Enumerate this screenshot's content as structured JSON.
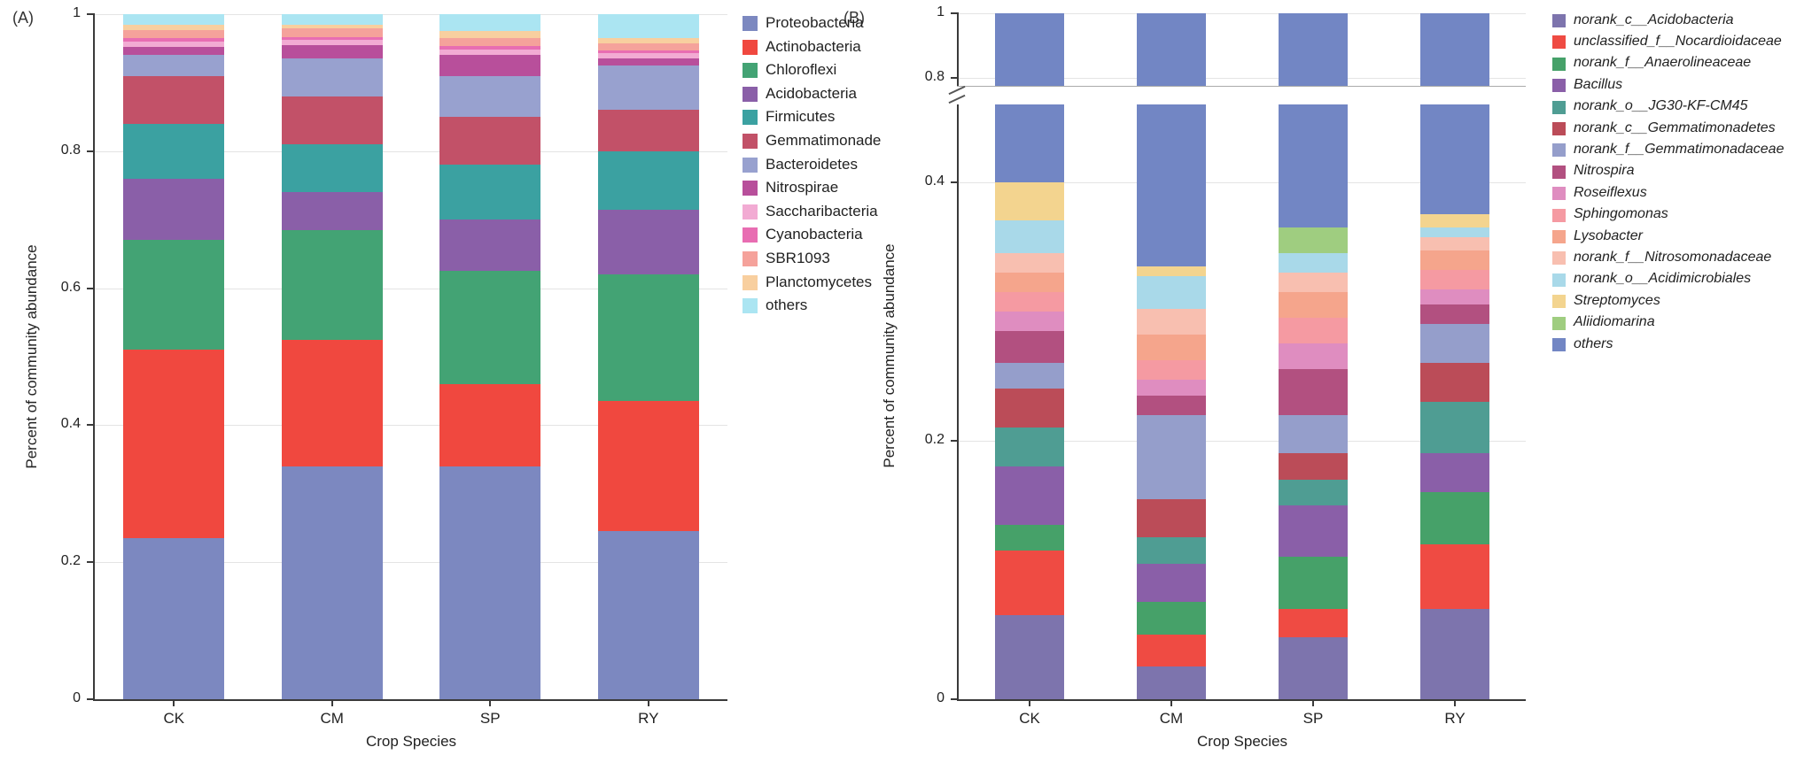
{
  "figure_title": "",
  "chart_data": [
    {
      "id": "A",
      "panel_label": "(A)",
      "type": "bar",
      "stacked": true,
      "title": "",
      "xlabel": "Crop Species",
      "ylabel": "Percent of community abundance",
      "categories": [
        "CK",
        "CM",
        "SP",
        "RY"
      ],
      "ylim": [
        0,
        1
      ],
      "yticks": [
        0,
        0.2,
        0.4,
        0.6,
        0.8,
        1
      ],
      "grid": true,
      "legend_position": "right",
      "legend_italic": false,
      "series": [
        {
          "name": "Proteobacteria",
          "color": "#7c88c0",
          "values": [
            0.235,
            0.34,
            0.34,
            0.245
          ]
        },
        {
          "name": "Actinobacteria",
          "color": "#f0483f",
          "values": [
            0.275,
            0.185,
            0.12,
            0.19
          ]
        },
        {
          "name": "Chloroflexi",
          "color": "#43a374",
          "values": [
            0.16,
            0.16,
            0.165,
            0.185
          ]
        },
        {
          "name": "Acidobacteria",
          "color": "#8a5fa8",
          "values": [
            0.09,
            0.055,
            0.075,
            0.095
          ]
        },
        {
          "name": "Firmicutes",
          "color": "#3ba1a1",
          "values": [
            0.08,
            0.07,
            0.08,
            0.085
          ]
        },
        {
          "name": "Gemmatimonade",
          "color": "#c25168",
          "values": [
            0.07,
            0.07,
            0.07,
            0.06
          ]
        },
        {
          "name": "Bacteroidetes",
          "color": "#98a1cf",
          "values": [
            0.03,
            0.055,
            0.06,
            0.065
          ]
        },
        {
          "name": "Nitrospirae",
          "color": "#b84f9b",
          "values": [
            0.012,
            0.02,
            0.03,
            0.01
          ]
        },
        {
          "name": "Saccharibacteria",
          "color": "#f2abd3",
          "values": [
            0.008,
            0.008,
            0.008,
            0.008
          ]
        },
        {
          "name": "Cyanobacteria",
          "color": "#e86db2",
          "values": [
            0.005,
            0.004,
            0.005,
            0.004
          ]
        },
        {
          "name": "SBR1093",
          "color": "#f5a29b",
          "values": [
            0.012,
            0.012,
            0.012,
            0.01
          ]
        },
        {
          "name": "Planctomycetes",
          "color": "#f8cf9f",
          "values": [
            0.008,
            0.006,
            0.01,
            0.008
          ]
        },
        {
          "name": "others",
          "color": "#abe5f2",
          "values": [
            0.015,
            0.015,
            0.025,
            0.035
          ]
        }
      ]
    },
    {
      "id": "B",
      "panel_label": "(B)",
      "type": "bar",
      "stacked": true,
      "title": "",
      "xlabel": "Crop Species",
      "ylabel": "Percent of community abundance",
      "categories": [
        "CK",
        "CM",
        "SP",
        "RY"
      ],
      "broken_axis": {
        "lower_range": [
          0,
          0.46
        ],
        "upper_range": [
          0.775,
          1
        ]
      },
      "yticks_lower": [
        0,
        0.2,
        0.4
      ],
      "yticks_upper": [
        0.8,
        1
      ],
      "grid": true,
      "legend_position": "right",
      "legend_italic": true,
      "series": [
        {
          "name": "norank_c__Acidobacteria",
          "color": "#7d74ad",
          "values": [
            0.065,
            0.025,
            0.048,
            0.07
          ]
        },
        {
          "name": "unclassified_f__Nocardioidaceae",
          "color": "#ef4b43",
          "values": [
            0.05,
            0.025,
            0.022,
            0.05
          ]
        },
        {
          "name": "norank_f__Anaerolineaceae",
          "color": "#46a169",
          "values": [
            0.02,
            0.025,
            0.04,
            0.04
          ]
        },
        {
          "name": "Bacillus",
          "color": "#8a5fa8",
          "values": [
            0.045,
            0.03,
            0.04,
            0.03
          ]
        },
        {
          "name": "norank_o__JG30-KF-CM45",
          "color": "#4f9d93",
          "values": [
            0.03,
            0.02,
            0.02,
            0.04
          ]
        },
        {
          "name": "norank_c__Gemmatimonadetes",
          "color": "#bb4c58",
          "values": [
            0.03,
            0.03,
            0.02,
            0.03
          ]
        },
        {
          "name": "norank_f__Gemmatimonadaceae",
          "color": "#959ecb",
          "values": [
            0.02,
            0.065,
            0.03,
            0.03
          ]
        },
        {
          "name": "Nitrospira",
          "color": "#b25080",
          "values": [
            0.025,
            0.015,
            0.035,
            0.015
          ]
        },
        {
          "name": "Roseiflexus",
          "color": "#df8dc0",
          "values": [
            0.015,
            0.012,
            0.02,
            0.012
          ]
        },
        {
          "name": "Sphingomonas",
          "color": "#f59aa2",
          "values": [
            0.015,
            0.015,
            0.02,
            0.015
          ]
        },
        {
          "name": "Lysobacter",
          "color": "#f5a58c",
          "values": [
            0.015,
            0.02,
            0.02,
            0.015
          ]
        },
        {
          "name": "norank_f__Nitrosomonadaceae",
          "color": "#f8bfb0",
          "values": [
            0.015,
            0.02,
            0.015,
            0.01
          ]
        },
        {
          "name": "norank_o__Acidimicrobiales",
          "color": "#a9d9e9",
          "values": [
            0.025,
            0.025,
            0.015,
            0.008
          ]
        },
        {
          "name": "Streptomyces",
          "color": "#f3d48f",
          "values": [
            0.03,
            0.008,
            0.0,
            0.01
          ]
        },
        {
          "name": "Aliidiomarina",
          "color": "#9fcd80",
          "values": [
            0.0,
            0.0,
            0.02,
            0.0
          ]
        },
        {
          "name": "others",
          "color": "#7286c4",
          "values": [
            0.6,
            0.665,
            0.635,
            0.625
          ]
        }
      ]
    }
  ]
}
